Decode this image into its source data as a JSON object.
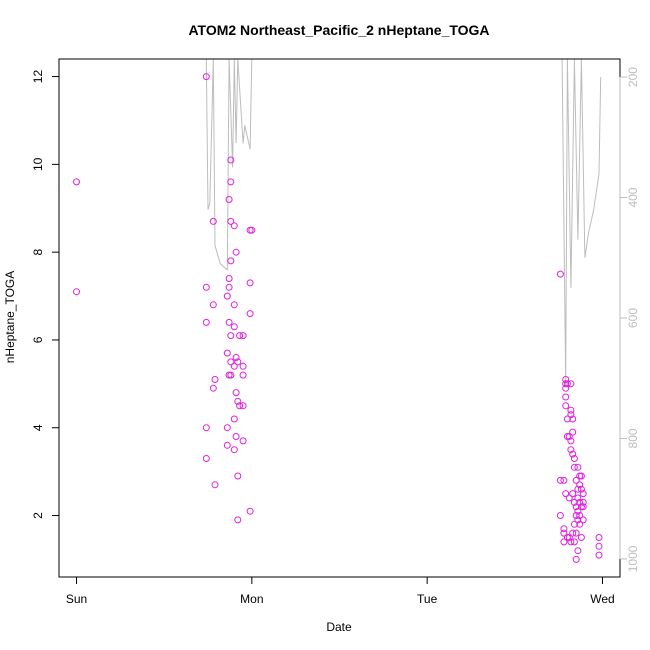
{
  "chart_data": {
    "type": "scatter",
    "title": "ATOM2 Northeast_Pacific_2 nHeptane_TOGA",
    "xlabel": "Date",
    "ylabel": "nHeptane_TOGA",
    "x_tick_labels": [
      "Sun",
      "Mon",
      "Tue",
      "Wed"
    ],
    "x_tick_values": [
      0,
      1,
      2,
      3
    ],
    "xlim": [
      -0.1,
      3.1
    ],
    "ylim": [
      0.6,
      12.4
    ],
    "y_ticks": [
      2,
      4,
      6,
      8,
      10,
      12
    ],
    "right_axis": {
      "label": "",
      "ticks": [
        200,
        400,
        600,
        800,
        1000
      ],
      "lim": [
        1030,
        170
      ],
      "color": "#bdbdbd"
    },
    "marker_color": "#e020e0",
    "line_color": "#bdbdbd",
    "grid": false,
    "series": [
      {
        "values": [
          [
            0.0,
            9.6
          ],
          [
            0.0,
            7.1
          ],
          [
            0.74,
            12.0
          ],
          [
            0.74,
            7.2
          ],
          [
            0.74,
            6.4
          ],
          [
            0.74,
            4.0
          ],
          [
            0.74,
            3.3
          ],
          [
            0.78,
            8.7
          ],
          [
            0.78,
            6.8
          ],
          [
            0.78,
            4.9
          ],
          [
            0.79,
            5.1
          ],
          [
            0.79,
            2.7
          ],
          [
            0.86,
            7.0
          ],
          [
            0.86,
            5.7
          ],
          [
            0.86,
            4.0
          ],
          [
            0.86,
            3.6
          ],
          [
            0.87,
            9.2
          ],
          [
            0.87,
            7.4
          ],
          [
            0.87,
            7.2
          ],
          [
            0.87,
            6.4
          ],
          [
            0.87,
            5.2
          ],
          [
            0.88,
            10.1
          ],
          [
            0.88,
            9.6
          ],
          [
            0.88,
            8.7
          ],
          [
            0.88,
            7.8
          ],
          [
            0.88,
            6.1
          ],
          [
            0.88,
            5.5
          ],
          [
            0.88,
            5.2
          ],
          [
            0.9,
            8.6
          ],
          [
            0.9,
            6.8
          ],
          [
            0.9,
            6.3
          ],
          [
            0.9,
            5.4
          ],
          [
            0.9,
            4.2
          ],
          [
            0.9,
            3.5
          ],
          [
            0.91,
            8.0
          ],
          [
            0.91,
            5.6
          ],
          [
            0.91,
            4.8
          ],
          [
            0.91,
            3.8
          ],
          [
            0.92,
            5.5
          ],
          [
            0.92,
            4.6
          ],
          [
            0.92,
            2.9
          ],
          [
            0.92,
            1.9
          ],
          [
            0.93,
            6.1
          ],
          [
            0.93,
            4.5
          ],
          [
            0.95,
            6.1
          ],
          [
            0.95,
            5.4
          ],
          [
            0.95,
            5.2
          ],
          [
            0.95,
            4.5
          ],
          [
            0.95,
            3.7
          ],
          [
            0.99,
            8.5
          ],
          [
            0.99,
            7.3
          ],
          [
            0.99,
            6.6
          ],
          [
            0.99,
            2.1
          ],
          [
            1.0,
            8.5
          ],
          [
            2.76,
            7.5
          ],
          [
            2.76,
            2.8
          ],
          [
            2.76,
            2.0
          ],
          [
            2.78,
            2.8
          ],
          [
            2.78,
            1.7
          ],
          [
            2.78,
            1.6
          ],
          [
            2.78,
            1.4
          ],
          [
            2.79,
            5.1
          ],
          [
            2.79,
            5.0
          ],
          [
            2.79,
            4.9
          ],
          [
            2.79,
            4.7
          ],
          [
            2.79,
            4.5
          ],
          [
            2.79,
            2.5
          ],
          [
            2.8,
            5.0
          ],
          [
            2.8,
            4.2
          ],
          [
            2.8,
            3.8
          ],
          [
            2.8,
            1.5
          ],
          [
            2.81,
            3.8
          ],
          [
            2.81,
            2.4
          ],
          [
            2.81,
            1.5
          ],
          [
            2.82,
            5.0
          ],
          [
            2.82,
            4.4
          ],
          [
            2.82,
            4.3
          ],
          [
            2.82,
            3.7
          ],
          [
            2.82,
            3.5
          ],
          [
            2.82,
            1.4
          ],
          [
            2.83,
            4.2
          ],
          [
            2.83,
            3.9
          ],
          [
            2.83,
            3.4
          ],
          [
            2.83,
            2.5
          ],
          [
            2.83,
            1.6
          ],
          [
            2.84,
            3.3
          ],
          [
            2.84,
            3.1
          ],
          [
            2.84,
            2.3
          ],
          [
            2.84,
            1.8
          ],
          [
            2.84,
            1.4
          ],
          [
            2.85,
            2.8
          ],
          [
            2.85,
            2.2
          ],
          [
            2.85,
            2.0
          ],
          [
            2.85,
            1.6
          ],
          [
            2.85,
            1.0
          ],
          [
            2.86,
            3.1
          ],
          [
            2.86,
            2.6
          ],
          [
            2.86,
            2.4
          ],
          [
            2.86,
            2.1
          ],
          [
            2.86,
            1.9
          ],
          [
            2.86,
            1.2
          ],
          [
            2.87,
            2.9
          ],
          [
            2.87,
            2.7
          ],
          [
            2.87,
            2.3
          ],
          [
            2.87,
            2.0
          ],
          [
            2.87,
            1.8
          ],
          [
            2.88,
            2.9
          ],
          [
            2.88,
            2.6
          ],
          [
            2.88,
            2.2
          ],
          [
            2.88,
            1.5
          ],
          [
            2.89,
            2.5
          ],
          [
            2.89,
            2.3
          ],
          [
            2.89,
            2.2
          ],
          [
            2.89,
            1.9
          ],
          [
            2.98,
            1.5
          ],
          [
            2.98,
            1.3
          ],
          [
            2.98,
            1.1
          ]
        ]
      },
      {
        "axis": "right",
        "line": true,
        "values": [
          [
            0.74,
            170
          ],
          [
            0.75,
            420
          ],
          [
            0.76,
            410
          ],
          [
            0.78,
            170
          ],
          [
            0.79,
            480
          ],
          [
            0.82,
            510
          ],
          [
            0.86,
            520
          ],
          [
            0.87,
            170
          ],
          [
            0.89,
            350
          ],
          [
            0.9,
            170
          ],
          [
            0.91,
            310
          ],
          [
            0.92,
            170
          ],
          [
            0.95,
            310
          ],
          [
            0.96,
            280
          ],
          [
            0.99,
            320
          ],
          [
            1.0,
            170
          ],
          [
            2.75,
            170
          ],
          [
            2.77,
            170
          ],
          [
            2.79,
            710
          ],
          [
            2.8,
            170
          ],
          [
            2.82,
            550
          ],
          [
            2.84,
            170
          ],
          [
            2.86,
            470
          ],
          [
            2.88,
            170
          ],
          [
            2.9,
            500
          ],
          [
            2.92,
            460
          ],
          [
            2.95,
            420
          ],
          [
            2.98,
            360
          ],
          [
            2.99,
            200
          ]
        ]
      }
    ]
  }
}
